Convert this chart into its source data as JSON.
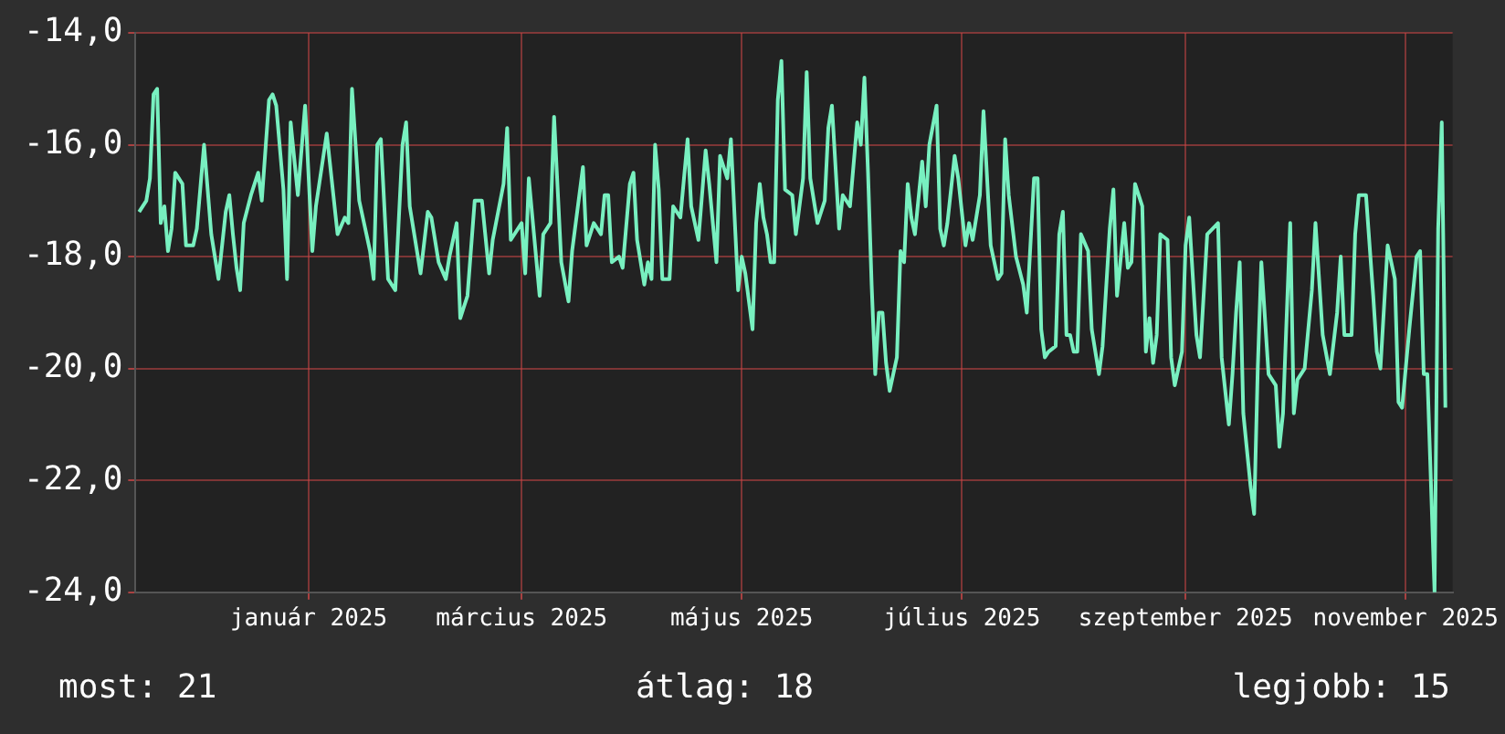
{
  "chart_data": {
    "type": "line",
    "legend": false,
    "grid": true,
    "marker": "none",
    "line_style": "solid",
    "xlim": [
      "2024-11-14",
      "2025-11-14"
    ],
    "xticks": [
      {
        "value": "2025-01-01",
        "label": "január 2025"
      },
      {
        "value": "2025-03-01",
        "label": "március 2025"
      },
      {
        "value": "2025-05-01",
        "label": "május 2025"
      },
      {
        "value": "2025-07-01",
        "label": "július 2025"
      },
      {
        "value": "2025-09-01",
        "label": "szeptember 2025"
      },
      {
        "value": "2025-11-01",
        "label": "november 2025"
      }
    ],
    "ylim": [
      -24,
      -14
    ],
    "yticks": [
      {
        "value": -24,
        "label": "-24,0"
      },
      {
        "value": -22,
        "label": "-22,0"
      },
      {
        "value": -20,
        "label": "-20,0"
      },
      {
        "value": -18,
        "label": "-18,0"
      },
      {
        "value": -16,
        "label": "-16,0"
      },
      {
        "value": -14,
        "label": "-14,0"
      }
    ],
    "annotations": [
      "most: 21",
      "átlag: 18",
      "legjobb: 15"
    ],
    "x": [
      "2024-11-15",
      "2024-11-17",
      "2024-11-18",
      "2024-11-19",
      "2024-11-20",
      "2024-11-21",
      "2024-11-22",
      "2024-11-23",
      "2024-11-24",
      "2024-11-25",
      "2024-11-27",
      "2024-11-28",
      "2024-11-30",
      "2024-12-01",
      "2024-12-03",
      "2024-12-05",
      "2024-12-07",
      "2024-12-09",
      "2024-12-10",
      "2024-12-11",
      "2024-12-12",
      "2024-12-13",
      "2024-12-14",
      "2024-12-16",
      "2024-12-18",
      "2024-12-19",
      "2024-12-21",
      "2024-12-22",
      "2024-12-23",
      "2024-12-25",
      "2024-12-26",
      "2024-12-27",
      "2024-12-29",
      "2024-12-31",
      "2025-01-02",
      "2025-01-03",
      "2025-01-06",
      "2025-01-09",
      "2025-01-11",
      "2025-01-12",
      "2025-01-13",
      "2025-01-14",
      "2025-01-15",
      "2025-01-18",
      "2025-01-19",
      "2025-01-20",
      "2025-01-21",
      "2025-01-23",
      "2025-01-25",
      "2025-01-27",
      "2025-01-28",
      "2025-01-29",
      "2025-02-01",
      "2025-02-03",
      "2025-02-04",
      "2025-02-06",
      "2025-02-08",
      "2025-02-09",
      "2025-02-11",
      "2025-02-12",
      "2025-02-14",
      "2025-02-16",
      "2025-02-18",
      "2025-02-20",
      "2025-02-21",
      "2025-02-24",
      "2025-02-25",
      "2025-02-26",
      "2025-03-01",
      "2025-03-02",
      "2025-03-03",
      "2025-03-06",
      "2025-03-07",
      "2025-03-09",
      "2025-03-10",
      "2025-03-12",
      "2025-03-14",
      "2025-03-15",
      "2025-03-18",
      "2025-03-19",
      "2025-03-21",
      "2025-03-23",
      "2025-03-24",
      "2025-03-25",
      "2025-03-26",
      "2025-03-28",
      "2025-03-29",
      "2025-03-31",
      "2025-04-01",
      "2025-04-02",
      "2025-04-04",
      "2025-04-05",
      "2025-04-06",
      "2025-04-07",
      "2025-04-08",
      "2025-04-09",
      "2025-04-11",
      "2025-04-12",
      "2025-04-14",
      "2025-04-16",
      "2025-04-17",
      "2025-04-19",
      "2025-04-21",
      "2025-04-22",
      "2025-04-24",
      "2025-04-25",
      "2025-04-27",
      "2025-04-28",
      "2025-04-30",
      "2025-05-01",
      "2025-05-02",
      "2025-05-04",
      "2025-05-05",
      "2025-05-06",
      "2025-05-07",
      "2025-05-08",
      "2025-05-09",
      "2025-05-10",
      "2025-05-11",
      "2025-05-12",
      "2025-05-13",
      "2025-05-15",
      "2025-05-16",
      "2025-05-18",
      "2025-05-19",
      "2025-05-20",
      "2025-05-22",
      "2025-05-24",
      "2025-05-25",
      "2025-05-26",
      "2025-05-28",
      "2025-05-29",
      "2025-05-31",
      "2025-06-02",
      "2025-06-03",
      "2025-06-04",
      "2025-06-05",
      "2025-06-06",
      "2025-06-07",
      "2025-06-08",
      "2025-06-09",
      "2025-06-10",
      "2025-06-11",
      "2025-06-13",
      "2025-06-14",
      "2025-06-15",
      "2025-06-16",
      "2025-06-17",
      "2025-06-18",
      "2025-06-20",
      "2025-06-21",
      "2025-06-22",
      "2025-06-24",
      "2025-06-25",
      "2025-06-26",
      "2025-06-27",
      "2025-06-29",
      "2025-06-30",
      "2025-07-02",
      "2025-07-03",
      "2025-07-04",
      "2025-07-06",
      "2025-07-07",
      "2025-07-09",
      "2025-07-11",
      "2025-07-12",
      "2025-07-13",
      "2025-07-14",
      "2025-07-16",
      "2025-07-18",
      "2025-07-19",
      "2025-07-21",
      "2025-07-22",
      "2025-07-23",
      "2025-07-24",
      "2025-07-25",
      "2025-07-27",
      "2025-07-28",
      "2025-07-29",
      "2025-07-30",
      "2025-07-31",
      "2025-08-01",
      "2025-08-02",
      "2025-08-03",
      "2025-08-05",
      "2025-08-06",
      "2025-08-08",
      "2025-08-09",
      "2025-08-11",
      "2025-08-12",
      "2025-08-13",
      "2025-08-15",
      "2025-08-16",
      "2025-08-17",
      "2025-08-18",
      "2025-08-20",
      "2025-08-21",
      "2025-08-22",
      "2025-08-23",
      "2025-08-24",
      "2025-08-25",
      "2025-08-27",
      "2025-08-28",
      "2025-08-29",
      "2025-08-31",
      "2025-09-01",
      "2025-09-02",
      "2025-09-04",
      "2025-09-05",
      "2025-09-07",
      "2025-09-10",
      "2025-09-11",
      "2025-09-13",
      "2025-09-14",
      "2025-09-15",
      "2025-09-16",
      "2025-09-17",
      "2025-09-19",
      "2025-09-20",
      "2025-09-21",
      "2025-09-22",
      "2025-09-24",
      "2025-09-26",
      "2025-09-27",
      "2025-09-28",
      "2025-09-30",
      "2025-10-01",
      "2025-10-02",
      "2025-10-04",
      "2025-10-06",
      "2025-10-07",
      "2025-10-09",
      "2025-10-11",
      "2025-10-13",
      "2025-10-14",
      "2025-10-15",
      "2025-10-17",
      "2025-10-18",
      "2025-10-19",
      "2025-10-21",
      "2025-10-23",
      "2025-10-24",
      "2025-10-25",
      "2025-10-27",
      "2025-10-29",
      "2025-10-30",
      "2025-10-31",
      "2025-11-02",
      "2025-11-04",
      "2025-11-05",
      "2025-11-06",
      "2025-11-07",
      "2025-11-09",
      "2025-11-10",
      "2025-11-11",
      "2025-11-12"
    ],
    "series": [
      {
        "color": "#78f0c0",
        "values": [
          -17.2,
          -17.0,
          -16.6,
          -15.1,
          -15.0,
          -17.4,
          -17.1,
          -17.9,
          -17.5,
          -16.5,
          -16.7,
          -17.8,
          -17.8,
          -17.5,
          -16.0,
          -17.6,
          -18.4,
          -17.2,
          -16.9,
          -17.6,
          -18.2,
          -18.6,
          -17.4,
          -16.9,
          -16.5,
          -17.0,
          -15.2,
          -15.1,
          -15.3,
          -16.8,
          -18.4,
          -15.6,
          -16.9,
          -15.3,
          -17.9,
          -17.1,
          -15.8,
          -17.6,
          -17.3,
          -17.4,
          -15.0,
          -16.0,
          -17.0,
          -17.9,
          -18.4,
          -16.0,
          -15.9,
          -18.4,
          -18.6,
          -16.0,
          -15.6,
          -17.1,
          -18.3,
          -17.2,
          -17.3,
          -18.1,
          -18.4,
          -18.0,
          -17.4,
          -19.1,
          -18.7,
          -17.0,
          -17.0,
          -18.3,
          -17.7,
          -16.7,
          -15.7,
          -17.7,
          -17.4,
          -18.3,
          -16.6,
          -18.7,
          -17.6,
          -17.4,
          -15.5,
          -18.1,
          -18.8,
          -17.9,
          -16.4,
          -17.8,
          -17.4,
          -17.6,
          -16.9,
          -16.9,
          -18.1,
          -18.0,
          -18.2,
          -16.7,
          -16.5,
          -17.7,
          -18.5,
          -18.1,
          -18.4,
          -16.0,
          -16.8,
          -18.4,
          -18.4,
          -17.1,
          -17.3,
          -15.9,
          -17.1,
          -17.7,
          -16.1,
          -16.7,
          -18.1,
          -16.2,
          -16.6,
          -15.9,
          -18.6,
          -18.0,
          -18.3,
          -19.3,
          -17.4,
          -16.7,
          -17.3,
          -17.6,
          -18.1,
          -18.1,
          -15.2,
          -14.5,
          -16.8,
          -16.9,
          -17.6,
          -16.6,
          -14.7,
          -16.6,
          -17.4,
          -17.0,
          -15.7,
          -15.3,
          -17.5,
          -16.9,
          -17.1,
          -15.6,
          -16.0,
          -14.8,
          -16.5,
          -18.5,
          -20.1,
          -19.0,
          -19.0,
          -19.9,
          -20.4,
          -19.8,
          -17.9,
          -18.1,
          -16.7,
          -17.3,
          -17.6,
          -16.3,
          -17.1,
          -16.0,
          -15.3,
          -17.5,
          -17.8,
          -17.4,
          -16.2,
          -16.6,
          -17.8,
          -17.4,
          -17.7,
          -16.9,
          -15.4,
          -17.8,
          -18.4,
          -18.3,
          -15.9,
          -16.9,
          -18.0,
          -18.5,
          -19.0,
          -16.6,
          -16.6,
          -19.3,
          -19.8,
          -19.7,
          -19.6,
          -17.6,
          -17.2,
          -19.4,
          -19.4,
          -19.7,
          -19.7,
          -17.6,
          -17.9,
          -19.3,
          -20.1,
          -19.6,
          -17.5,
          -16.8,
          -18.7,
          -17.4,
          -18.2,
          -18.1,
          -16.7,
          -17.1,
          -19.7,
          -19.1,
          -19.9,
          -19.4,
          -17.6,
          -17.7,
          -19.8,
          -20.3,
          -19.7,
          -17.8,
          -17.3,
          -19.4,
          -19.8,
          -17.6,
          -17.4,
          -19.8,
          -21.0,
          -20.1,
          -19.0,
          -18.1,
          -20.8,
          -22.1,
          -22.6,
          -20.0,
          -18.1,
          -20.1,
          -20.3,
          -21.4,
          -20.8,
          -17.4,
          -20.8,
          -20.2,
          -20.0,
          -18.6,
          -17.4,
          -19.4,
          -20.1,
          -19.0,
          -18.0,
          -19.4,
          -19.4,
          -17.6,
          -16.9,
          -16.9,
          -18.7,
          -19.7,
          -20.0,
          -17.8,
          -18.4,
          -20.6,
          -20.7,
          -19.3,
          -18.0,
          -17.9,
          -20.1,
          -20.1,
          -24.0,
          -17.5,
          -15.6,
          -20.7
        ]
      }
    ]
  }
}
